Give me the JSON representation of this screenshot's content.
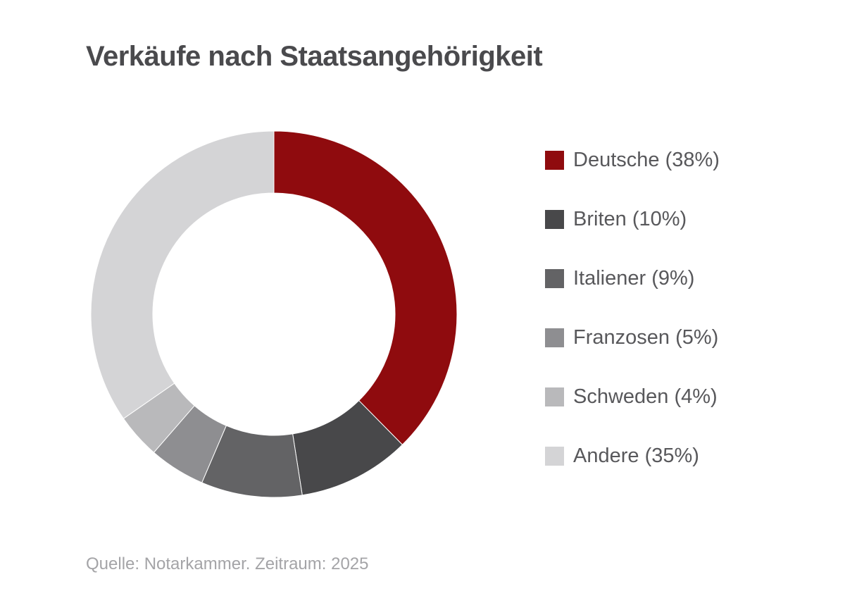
{
  "chart_data": {
    "type": "pie",
    "title": "Verkäufe nach Staatsangehörigkeit",
    "donut": true,
    "categories": [
      "Deutsche",
      "Briten",
      "Italiener",
      "Franzosen",
      "Schweden",
      "Andere"
    ],
    "values": [
      38,
      10,
      9,
      5,
      4,
      35
    ],
    "unit": "%",
    "colors": [
      "#8f0b0e",
      "#48484a",
      "#636365",
      "#8e8e91",
      "#b9b9bb",
      "#d4d4d6"
    ],
    "legend_labels": [
      "Deutsche (38%)",
      "Briten (10%)",
      "Italiener (9%)",
      "Franzosen (5%)",
      "Schweden (4%)",
      "Andere (35%)"
    ],
    "legend_position": "right",
    "source": "Quelle: Notarkammer. Zeitraum: 2025"
  }
}
